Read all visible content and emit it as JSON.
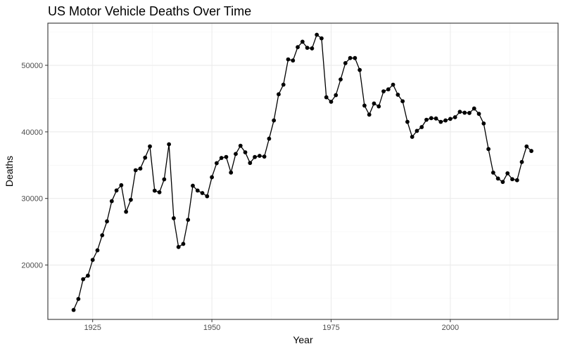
{
  "chart_data": {
    "type": "line",
    "title": "US Motor Vehicle Deaths Over Time",
    "xlabel": "Year",
    "ylabel": "Deaths",
    "xlim": [
      1915.6,
      1922.6
    ],
    "x_range": [
      1915.6,
      2022.6
    ],
    "ylim": [
      11830,
      56330
    ],
    "x_ticks": [
      1925,
      1950,
      1975,
      2000
    ],
    "x_tick_labels": [
      "1925",
      "1950",
      "1975",
      "2000"
    ],
    "y_ticks": [
      20000,
      30000,
      40000,
      50000
    ],
    "y_tick_labels": [
      "20000",
      "30000",
      "40000",
      "50000"
    ],
    "grid": true,
    "markers": true,
    "series": [
      {
        "x": [
          1921,
          1922,
          1923,
          1924,
          1925,
          1926,
          1927,
          1928,
          1929,
          1930,
          1931,
          1932,
          1933,
          1934,
          1935,
          1936,
          1937,
          1938,
          1939,
          1940,
          1941,
          1942,
          1943,
          1944,
          1945,
          1946,
          1947,
          1948,
          1949,
          1950,
          1951,
          1952,
          1953,
          1954,
          1955,
          1956,
          1957,
          1958,
          1959,
          1960,
          1961,
          1962,
          1963,
          1964,
          1965,
          1966,
          1967,
          1968,
          1969,
          1970,
          1971,
          1972,
          1973,
          1974,
          1975,
          1976,
          1977,
          1978,
          1979,
          1980,
          1981,
          1982,
          1983,
          1984,
          1985,
          1986,
          1987,
          1988,
          1989,
          1990,
          1991,
          1992,
          1993,
          1994,
          1995,
          1996,
          1997,
          1998,
          1999,
          2000,
          2001,
          2002,
          2003,
          2004,
          2005,
          2006,
          2007,
          2008,
          2009,
          2010,
          2011,
          2012,
          2013,
          2014,
          2015,
          2016,
          2017
        ],
        "values": [
          13250,
          14900,
          17870,
          18400,
          20770,
          22210,
          24470,
          26560,
          29590,
          31200,
          31990,
          28000,
          29800,
          34240,
          34490,
          36130,
          37820,
          31170,
          30930,
          32870,
          38140,
          27030,
          22710,
          23170,
          26790,
          31910,
          31190,
          30810,
          30330,
          33190,
          35300,
          36080,
          36230,
          33890,
          36690,
          37910,
          36930,
          35330,
          36220,
          36400,
          36290,
          38980,
          41720,
          45650,
          47090,
          50890,
          50720,
          52730,
          53540,
          52630,
          52540,
          54590,
          54050,
          45200,
          44520,
          45520,
          47880,
          50330,
          51090,
          51090,
          49300,
          43950,
          42590,
          44260,
          43830,
          46090,
          46390,
          47090,
          45580,
          44600,
          41510,
          39250,
          40150,
          40720,
          41820,
          42060,
          42010,
          41500,
          41720,
          41950,
          42200,
          43010,
          42880,
          42840,
          43510,
          42710,
          41260,
          37420,
          33880,
          32990,
          32480,
          33780,
          32890,
          32740,
          35480,
          37810,
          37130
        ]
      }
    ]
  }
}
